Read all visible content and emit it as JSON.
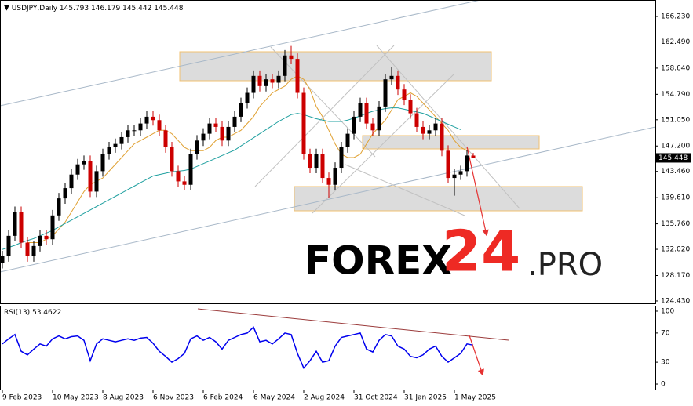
{
  "chart_data": {
    "type": "candlestick",
    "title": "USDJPY,Daily",
    "categories": [
      "9 Feb 2023",
      null,
      null,
      null,
      null,
      null,
      null,
      null,
      "10 May 2023",
      null,
      null,
      null,
      null,
      null,
      null,
      null,
      "8 Aug 2023",
      null,
      null,
      null,
      null,
      null,
      null,
      null,
      "6 Nov 2023",
      null,
      null,
      null,
      null,
      null,
      null,
      null,
      "6 Feb 2024",
      null,
      null,
      null,
      null,
      null,
      null,
      null,
      "6 May 2024",
      null,
      null,
      null,
      null,
      null,
      null,
      null,
      "2 Aug 2024",
      null,
      null,
      null,
      null,
      null,
      null,
      null,
      "31 Oct 2024",
      null,
      null,
      null,
      null,
      null,
      null,
      null,
      "31 Jan 2025",
      null,
      null,
      null,
      null,
      null,
      null,
      null,
      "1 May 2025",
      null,
      null,
      null
    ],
    "open": [
      130,
      131,
      134,
      137.5,
      133,
      131,
      132.5,
      134,
      133.5,
      137,
      139.5,
      141,
      143,
      144.5,
      145,
      140.5,
      143.5,
      146,
      147,
      147.5,
      148.5,
      149.5,
      149.5,
      150.5,
      151.5,
      151,
      149.5,
      147,
      143.5,
      142,
      141.5,
      146,
      148,
      149,
      150.5,
      150,
      148,
      150,
      151.5,
      153.5,
      155,
      157.5,
      156,
      157,
      156.5,
      157.5,
      160.5,
      160,
      155,
      146,
      144,
      146,
      142.5,
      141.5,
      144,
      147,
      149,
      151.5,
      153.5,
      150.5,
      149.5,
      153,
      157,
      157.5,
      155.5,
      154,
      152,
      150,
      149,
      149.5,
      150.5,
      146.5,
      142.5,
      143,
      143.5,
      145.793
    ],
    "high": [
      131.8,
      134.8,
      138.3,
      138.3,
      133.8,
      133.3,
      134.8,
      134.8,
      137.8,
      140.3,
      141.8,
      143.8,
      145.3,
      145.8,
      145.8,
      144.3,
      146.8,
      147.8,
      148.3,
      149.3,
      150.3,
      150.3,
      151.3,
      152.3,
      152.3,
      151.8,
      150.3,
      147.8,
      144.3,
      142.8,
      146.8,
      148.8,
      149.8,
      151.3,
      151.3,
      150.8,
      150.8,
      152.3,
      154.3,
      155.8,
      158.3,
      158.3,
      157.8,
      157.8,
      158.3,
      161.3,
      161.9,
      160.8,
      155.8,
      146.8,
      146.8,
      146.8,
      143.3,
      144.8,
      147.8,
      149.8,
      152.3,
      154.3,
      154.3,
      151.3,
      153.8,
      157.8,
      158.8,
      158.3,
      156.3,
      154.8,
      152.8,
      150.8,
      150.3,
      151.3,
      151.3,
      147.3,
      143.8,
      144.3,
      146.6,
      146.179
    ],
    "low": [
      129.2,
      130.2,
      133.2,
      132.2,
      130.2,
      130.2,
      131.7,
      132.7,
      132.7,
      136.2,
      138.7,
      140.2,
      142.2,
      143.7,
      139.7,
      139.7,
      142.7,
      145.2,
      146.2,
      146.7,
      147.7,
      148.7,
      148.7,
      149.7,
      150.2,
      148.7,
      146.2,
      142.7,
      141.2,
      140.7,
      140.7,
      145.2,
      147.2,
      148.2,
      149.2,
      147.2,
      147.2,
      149.2,
      150.7,
      152.7,
      154.2,
      155.2,
      155.2,
      155.7,
      155.7,
      156.7,
      159.2,
      154.2,
      145.2,
      143.2,
      143.2,
      141.7,
      139.6,
      140.7,
      143.2,
      146.2,
      148.2,
      150.7,
      149.7,
      148.7,
      148.7,
      152.2,
      156.2,
      154.7,
      153.2,
      151.2,
      149.2,
      148.2,
      148.2,
      148.7,
      145.7,
      141.7,
      139.9,
      142.2,
      142.7,
      145.442
    ],
    "close": [
      131,
      134,
      137.5,
      133,
      131,
      132.5,
      134,
      133.5,
      137,
      139.5,
      141,
      143,
      144.5,
      145,
      140.5,
      143.5,
      146,
      147,
      147.5,
      148.5,
      149.5,
      149.5,
      150.5,
      151.5,
      151,
      149.5,
      147,
      143.5,
      142,
      141.5,
      146,
      148,
      149,
      150.5,
      150,
      148,
      150,
      151.5,
      153.5,
      155,
      157.5,
      156,
      157,
      156.5,
      157.5,
      160.5,
      160,
      155,
      146,
      144,
      146,
      142.5,
      141.5,
      144,
      147,
      149,
      151.5,
      153.5,
      150.5,
      149.5,
      153,
      157,
      157.5,
      155.5,
      154,
      152,
      150,
      149,
      149.5,
      150.5,
      146.5,
      142.5,
      143,
      143.5,
      145.8,
      145.448
    ],
    "up_color": "#000000",
    "down_color": "#cc0000",
    "lines": [
      {
        "color": "#e0a030",
        "values": [
          null,
          null,
          null,
          null,
          133,
          133,
          133,
          133.5,
          134,
          135,
          136,
          137.5,
          139,
          140.5,
          141.5,
          142,
          142.5,
          143.5,
          144.5,
          145.5,
          146.5,
          147.5,
          148,
          148.5,
          149,
          149.5,
          149.5,
          149,
          148,
          147,
          146.5,
          146.5,
          146.5,
          147,
          148,
          148.5,
          148.5,
          149,
          149.5,
          150.5,
          151.5,
          153,
          154,
          155,
          155.5,
          156,
          157,
          157.5,
          157,
          155.5,
          153,
          151.5,
          149.5,
          147.5,
          146,
          145.5,
          145.5,
          146,
          147.5,
          149,
          150,
          151,
          152.5,
          154,
          154.5,
          155,
          154.5,
          153.5,
          152.5,
          151.5,
          150.5,
          149.5,
          148,
          147,
          146.5,
          null
        ]
      },
      {
        "color": "#20a0a0",
        "values": [
          132,
          132.3,
          132.6,
          133,
          133.3,
          133.6,
          134,
          134.4,
          134.8,
          135.3,
          135.8,
          136.3,
          136.8,
          137.3,
          137.8,
          138.3,
          138.8,
          139.3,
          139.8,
          140.3,
          140.8,
          141.3,
          141.8,
          142.3,
          142.8,
          143,
          143.2,
          143.4,
          143.5,
          143.6,
          143.8,
          144.2,
          144.6,
          145,
          145.4,
          145.8,
          146.2,
          146.6,
          147.2,
          147.8,
          148.4,
          149,
          149.6,
          150.2,
          150.8,
          151.3,
          151.8,
          152,
          151.8,
          151.5,
          151.2,
          151,
          150.8,
          150.8,
          150.8,
          151,
          151.3,
          151.6,
          152,
          152.3,
          152.5,
          152.7,
          152.8,
          152.8,
          152.6,
          152.4,
          152.2,
          152,
          151.6,
          151.2,
          150.8,
          150.4,
          150,
          149.6,
          null,
          null
        ]
      }
    ],
    "ylim": [
      124.08,
      168.65
    ],
    "yticks": [
      {
        "value": 166.23,
        "label": "166.230"
      },
      {
        "value": 162.49,
        "label": "162.490"
      },
      {
        "value": 158.64,
        "label": "158.640"
      },
      {
        "value": 154.79,
        "label": "154.790"
      },
      {
        "value": 151.05,
        "label": "151.050"
      },
      {
        "value": 147.2,
        "label": "147.200"
      },
      {
        "value": 143.46,
        "label": "143.460"
      },
      {
        "value": 139.61,
        "label": "139.610"
      },
      {
        "value": 135.76,
        "label": "135.760"
      },
      {
        "value": 132.02,
        "label": "132.020"
      },
      {
        "value": 128.17,
        "label": "128.170"
      },
      {
        "value": 124.43,
        "label": "124.430"
      }
    ],
    "rsi": {
      "title": "RSI(13)",
      "color": "#0000ee",
      "values": [
        55,
        62,
        68,
        45,
        40,
        48,
        55,
        52,
        62,
        66,
        62,
        65,
        66,
        60,
        32,
        55,
        62,
        60,
        58,
        60,
        62,
        60,
        63,
        64,
        56,
        45,
        38,
        30,
        35,
        42,
        62,
        66,
        60,
        64,
        58,
        48,
        60,
        64,
        68,
        70,
        78,
        58,
        60,
        55,
        62,
        70,
        68,
        42,
        22,
        32,
        45,
        30,
        32,
        52,
        64,
        66,
        68,
        70,
        48,
        44,
        60,
        68,
        66,
        52,
        48,
        38,
        36,
        40,
        48,
        52,
        38,
        30,
        36,
        42,
        55,
        53.4622
      ],
      "ylim": [
        -7.5,
        107.5
      ],
      "yticks": [
        0,
        30,
        70,
        100
      ]
    }
  },
  "watermark": {
    "main": "FOREX",
    "number": "24",
    "suffix": ".PRO"
  }
}
